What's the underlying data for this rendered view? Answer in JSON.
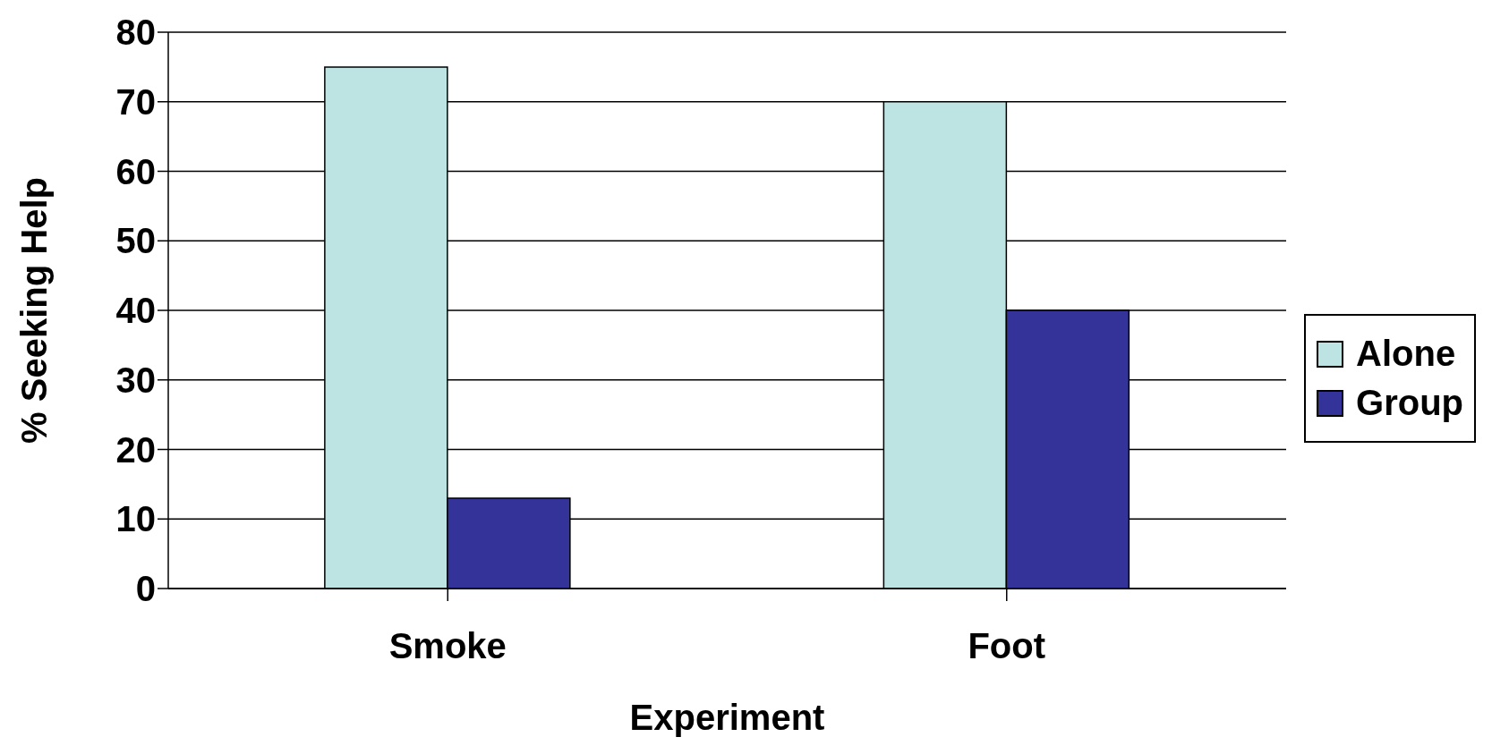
{
  "chart_data": {
    "type": "bar",
    "xlabel": "Experiment",
    "ylabel": "% Seeking Help",
    "categories": [
      "Smoke",
      "Foot"
    ],
    "series": [
      {
        "name": "Alone",
        "color": "#bde3e3",
        "values": [
          75,
          70
        ]
      },
      {
        "name": "Group",
        "color": "#333399",
        "values": [
          13,
          40
        ]
      }
    ],
    "ylim": [
      0,
      80
    ],
    "yticks": [
      0,
      10,
      20,
      30,
      40,
      50,
      60,
      70,
      80
    ],
    "grid": "y",
    "legend": "right"
  }
}
